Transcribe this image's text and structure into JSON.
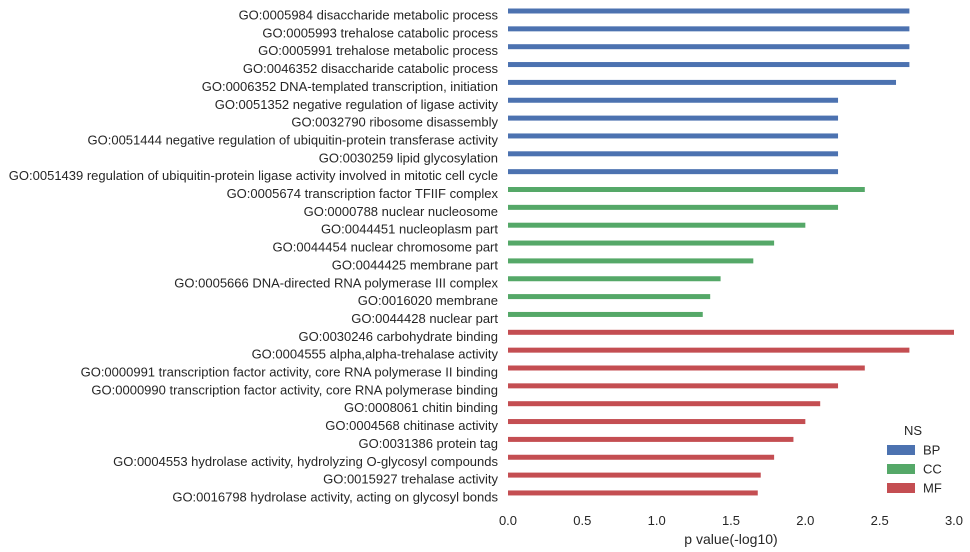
{
  "chart_data": {
    "type": "bar",
    "orientation": "horizontal",
    "xlabel": "p value(-log10)",
    "ylabel": "",
    "xlim": [
      0,
      3
    ],
    "xticks": [
      "0.0",
      "0.5",
      "1.0",
      "1.5",
      "2.0",
      "2.5",
      "3.0"
    ],
    "grid": false,
    "legend": {
      "title": "NS",
      "placement": "bottom-right",
      "entries": [
        {
          "name": "BP",
          "color": "#4c72b0"
        },
        {
          "name": "CC",
          "color": "#55a868"
        },
        {
          "name": "MF",
          "color": "#c44e52"
        }
      ]
    },
    "bars": [
      {
        "label": "GO:0005984 disaccharide metabolic process",
        "value": 2.7,
        "group": "BP"
      },
      {
        "label": "GO:0005993 trehalose catabolic process",
        "value": 2.7,
        "group": "BP"
      },
      {
        "label": "GO:0005991 trehalose metabolic process",
        "value": 2.7,
        "group": "BP"
      },
      {
        "label": "GO:0046352 disaccharide catabolic process",
        "value": 2.7,
        "group": "BP"
      },
      {
        "label": "GO:0006352 DNA-templated transcription, initiation",
        "value": 2.61,
        "group": "BP"
      },
      {
        "label": "GO:0051352 negative regulation of ligase activity",
        "value": 2.22,
        "group": "BP"
      },
      {
        "label": "GO:0032790 ribosome disassembly",
        "value": 2.22,
        "group": "BP"
      },
      {
        "label": "GO:0051444 negative regulation of ubiquitin-protein transferase activity",
        "value": 2.22,
        "group": "BP"
      },
      {
        "label": "GO:0030259 lipid glycosylation",
        "value": 2.22,
        "group": "BP"
      },
      {
        "label": "GO:0051439 regulation of ubiquitin-protein ligase activity involved in mitotic cell cycle",
        "value": 2.22,
        "group": "BP"
      },
      {
        "label": "GO:0005674 transcription factor TFIIF complex",
        "value": 2.4,
        "group": "CC"
      },
      {
        "label": "GO:0000788 nuclear nucleosome",
        "value": 2.22,
        "group": "CC"
      },
      {
        "label": "GO:0044451 nucleoplasm part",
        "value": 2.0,
        "group": "CC"
      },
      {
        "label": "GO:0044454 nuclear chromosome part",
        "value": 1.79,
        "group": "CC"
      },
      {
        "label": "GO:0044425 membrane part",
        "value": 1.65,
        "group": "CC"
      },
      {
        "label": "GO:0005666 DNA-directed RNA polymerase III complex",
        "value": 1.43,
        "group": "CC"
      },
      {
        "label": "GO:0016020 membrane",
        "value": 1.36,
        "group": "CC"
      },
      {
        "label": "GO:0044428 nuclear part",
        "value": 1.31,
        "group": "CC"
      },
      {
        "label": "GO:0030246 carbohydrate binding",
        "value": 3.0,
        "group": "MF"
      },
      {
        "label": "GO:0004555 alpha,alpha-trehalase activity",
        "value": 2.7,
        "group": "MF"
      },
      {
        "label": "GO:0000991 transcription factor activity, core RNA polymerase II binding",
        "value": 2.4,
        "group": "MF"
      },
      {
        "label": "GO:0000990 transcription factor activity, core RNA polymerase binding",
        "value": 2.22,
        "group": "MF"
      },
      {
        "label": "GO:0008061 chitin binding",
        "value": 2.1,
        "group": "MF"
      },
      {
        "label": "GO:0004568 chitinase activity",
        "value": 2.0,
        "group": "MF"
      },
      {
        "label": "GO:0031386 protein tag",
        "value": 1.92,
        "group": "MF"
      },
      {
        "label": "GO:0004553 hydrolase activity, hydrolyzing O-glycosyl compounds",
        "value": 1.79,
        "group": "MF"
      },
      {
        "label": "GO:0015927 trehalase activity",
        "value": 1.7,
        "group": "MF"
      },
      {
        "label": "GO:0016798 hydrolase activity, acting on glycosyl bonds",
        "value": 1.68,
        "group": "MF"
      }
    ]
  }
}
